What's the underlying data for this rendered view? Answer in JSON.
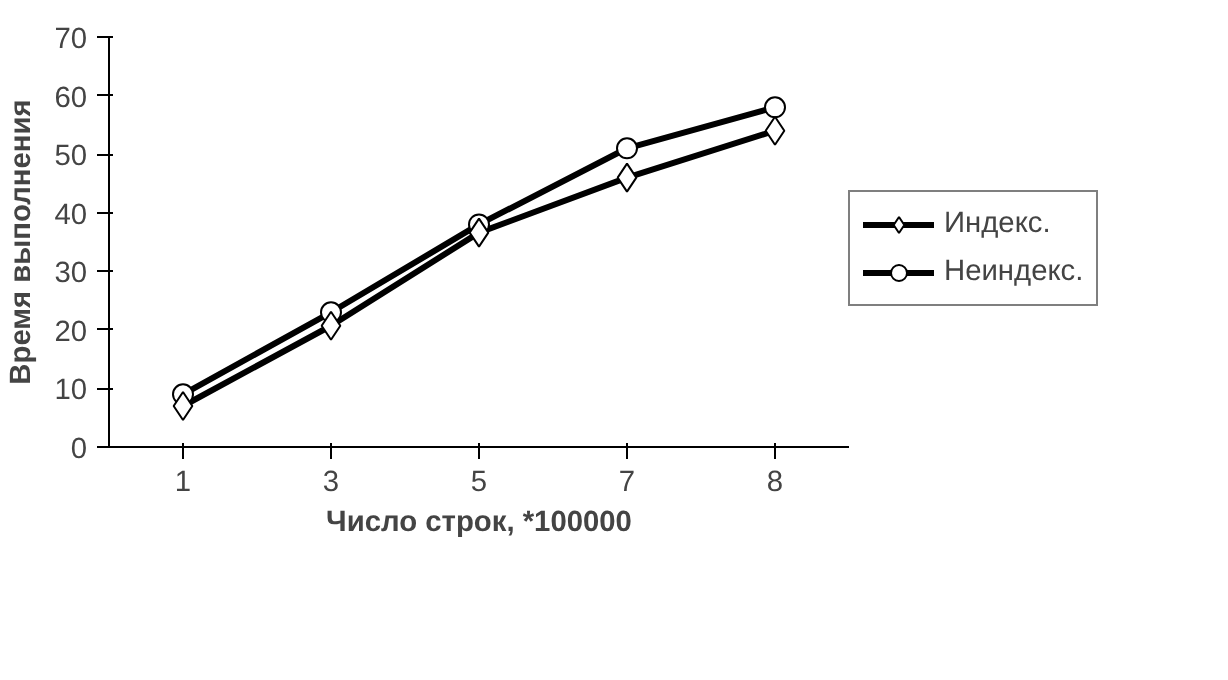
{
  "chart_data": {
    "type": "line",
    "xlabel": "Число строк, *100000",
    "ylabel": "Время выполнения",
    "categories": [
      "1",
      "3",
      "5",
      "7",
      "8"
    ],
    "series": [
      {
        "name": "Индекс.",
        "color": "#000000",
        "marker": "diamond",
        "values": [
          7,
          20.7,
          36.6,
          46,
          54
        ]
      },
      {
        "name": "Неиндекс.",
        "color": "#000000",
        "marker": "circle",
        "values": [
          9,
          23,
          38,
          51,
          58
        ]
      }
    ],
    "ylim": [
      0,
      70
    ],
    "yticks": [
      0,
      10,
      20,
      30,
      40,
      50,
      60,
      70
    ],
    "grid": false,
    "legend": "right",
    "line_style": "solid"
  }
}
